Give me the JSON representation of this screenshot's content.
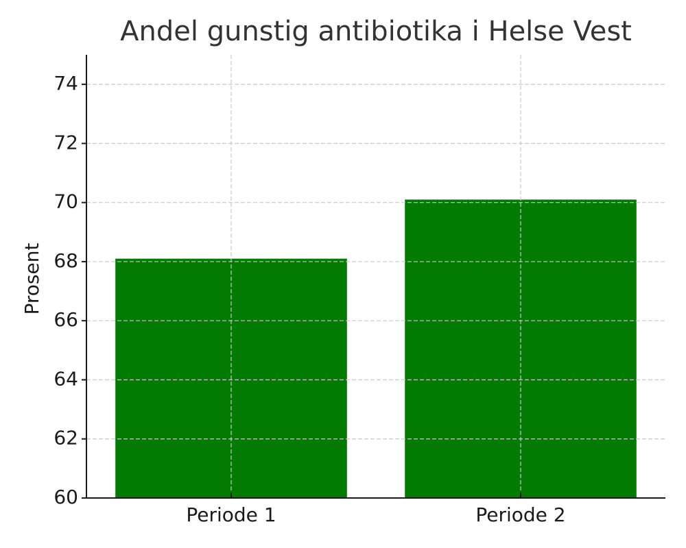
{
  "chart_data": {
    "type": "bar",
    "title": "Andel gunstig antibiotika i Helse Vest",
    "y_label": "Prosent",
    "categories": [
      "Periode 1",
      "Periode 2"
    ],
    "values": [
      68.1,
      70.1
    ],
    "color": "#037b03",
    "ylim": [
      60,
      75
    ],
    "yticks": [
      60,
      62,
      64,
      66,
      68,
      70,
      72,
      74
    ],
    "grid": true
  }
}
